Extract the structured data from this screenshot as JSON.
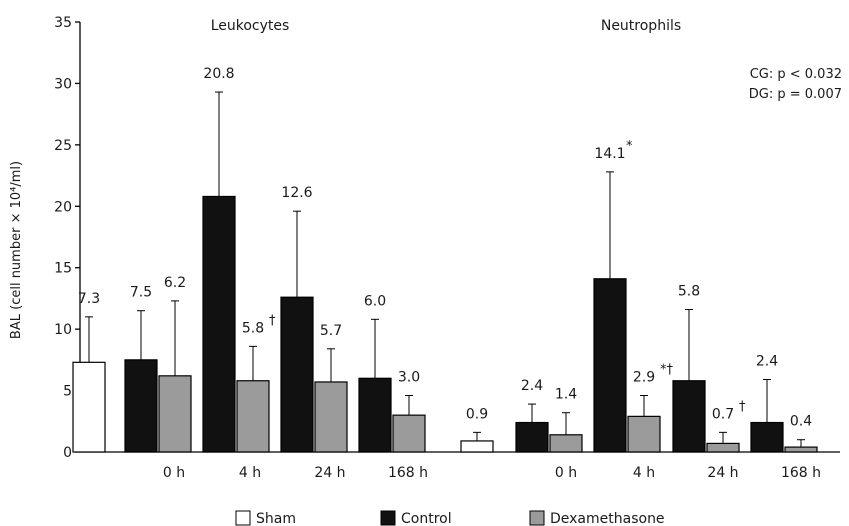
{
  "chart_data": {
    "type": "bar",
    "ylabel": "BAL (cell number × 10⁴/ml)",
    "ylim": [
      0,
      35
    ],
    "yticks": [
      0,
      5,
      10,
      15,
      20,
      25,
      30,
      35
    ],
    "categories": [
      "0 h",
      "4 h",
      "24 h",
      "168 h"
    ],
    "colors": {
      "Sham": "#ffffff",
      "Control": "#111111",
      "Dexamethasone": "#9b9b9b"
    },
    "legend": [
      "Sham",
      "Control",
      "Dexamethasone"
    ],
    "legend_position": "bottom",
    "annotations": [
      "CG: p < 0.032",
      "DG: p = 0.007"
    ],
    "panels": [
      {
        "title": "Leukocytes",
        "sham": {
          "value": 7.3,
          "label": "7.3",
          "error": 11.0
        },
        "control": {
          "values": [
            7.5,
            20.8,
            12.6,
            6.0
          ],
          "labels": [
            "7.5",
            "20.8",
            "12.6",
            "6.0"
          ],
          "errors": [
            11.5,
            29.3,
            19.6,
            10.8
          ],
          "marks": [
            "",
            "",
            "",
            ""
          ]
        },
        "dexamethasone": {
          "values": [
            6.2,
            5.8,
            5.7,
            3.0
          ],
          "labels": [
            "6.2",
            "5.8",
            "5.7",
            "3.0"
          ],
          "errors": [
            12.3,
            8.6,
            8.4,
            4.6
          ],
          "marks": [
            "",
            "†",
            "",
            ""
          ]
        }
      },
      {
        "title": "Neutrophils",
        "sham": {
          "value": 0.9,
          "label": "0.9",
          "error": 1.6
        },
        "control": {
          "values": [
            2.4,
            14.1,
            5.8,
            2.4
          ],
          "labels": [
            "2.4",
            "14.1",
            "5.8",
            "2.4"
          ],
          "errors": [
            3.9,
            22.8,
            11.6,
            5.9
          ],
          "marks": [
            "",
            "*",
            "",
            ""
          ]
        },
        "dexamethasone": {
          "values": [
            1.4,
            2.9,
            0.7,
            0.4
          ],
          "labels": [
            "1.4",
            "2.9",
            "0.7",
            "0.4"
          ],
          "errors": [
            3.2,
            4.6,
            1.6,
            1.0
          ],
          "marks": [
            "",
            "*†",
            "†",
            ""
          ]
        }
      }
    ]
  }
}
